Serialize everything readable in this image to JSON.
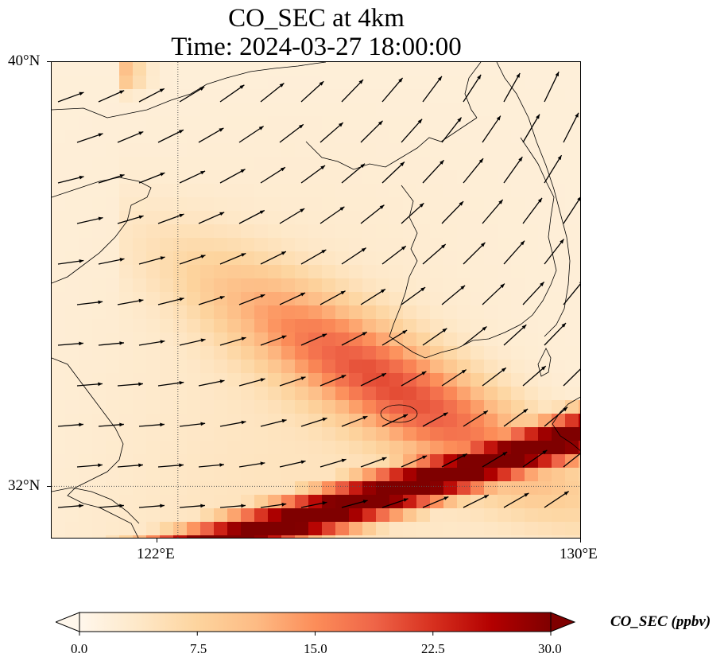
{
  "title": {
    "line1": "CO_SEC at 4km",
    "line2": "Time: 2024-03-27 18:00:00"
  },
  "map": {
    "lon_range": [
      119.5,
      130.0
    ],
    "lat_range": [
      31.0,
      40.0
    ],
    "gridlines": {
      "lon": [
        122
      ],
      "lat": [
        32
      ],
      "style": "dotted"
    },
    "lon_ticks": [
      {
        "value": 122,
        "label": "122°E"
      },
      {
        "value": 130,
        "label": "130°E"
      }
    ],
    "lat_ticks": [
      {
        "value": 32,
        "label": "32°N"
      },
      {
        "value": 40,
        "label": "40°N"
      }
    ]
  },
  "colorbar": {
    "title": "CO_SEC (ppbv)",
    "range": [
      0,
      30
    ],
    "ticks": [
      {
        "value": 0,
        "label": "0.0"
      },
      {
        "value": 7.5,
        "label": "7.5"
      },
      {
        "value": 15,
        "label": "15.0"
      },
      {
        "value": 22.5,
        "label": "22.5"
      },
      {
        "value": 30,
        "label": "30.0"
      }
    ],
    "extend": "both",
    "colormap": "OrRd",
    "colors": [
      "#fff7ec",
      "#fee8c8",
      "#fdd49e",
      "#fdbb84",
      "#fc8d59",
      "#ef6548",
      "#d7301f",
      "#b30000",
      "#7f0000"
    ]
  },
  "field_description": {
    "plume_axis": "low values in north; moderate band over Yellow Sea toward southern Korea; maximum band (>=30 ppbv) from East China Sea near 31N 121E northeast to Korea Strait",
    "wind_direction": "predominantly from the west-southwest"
  }
}
